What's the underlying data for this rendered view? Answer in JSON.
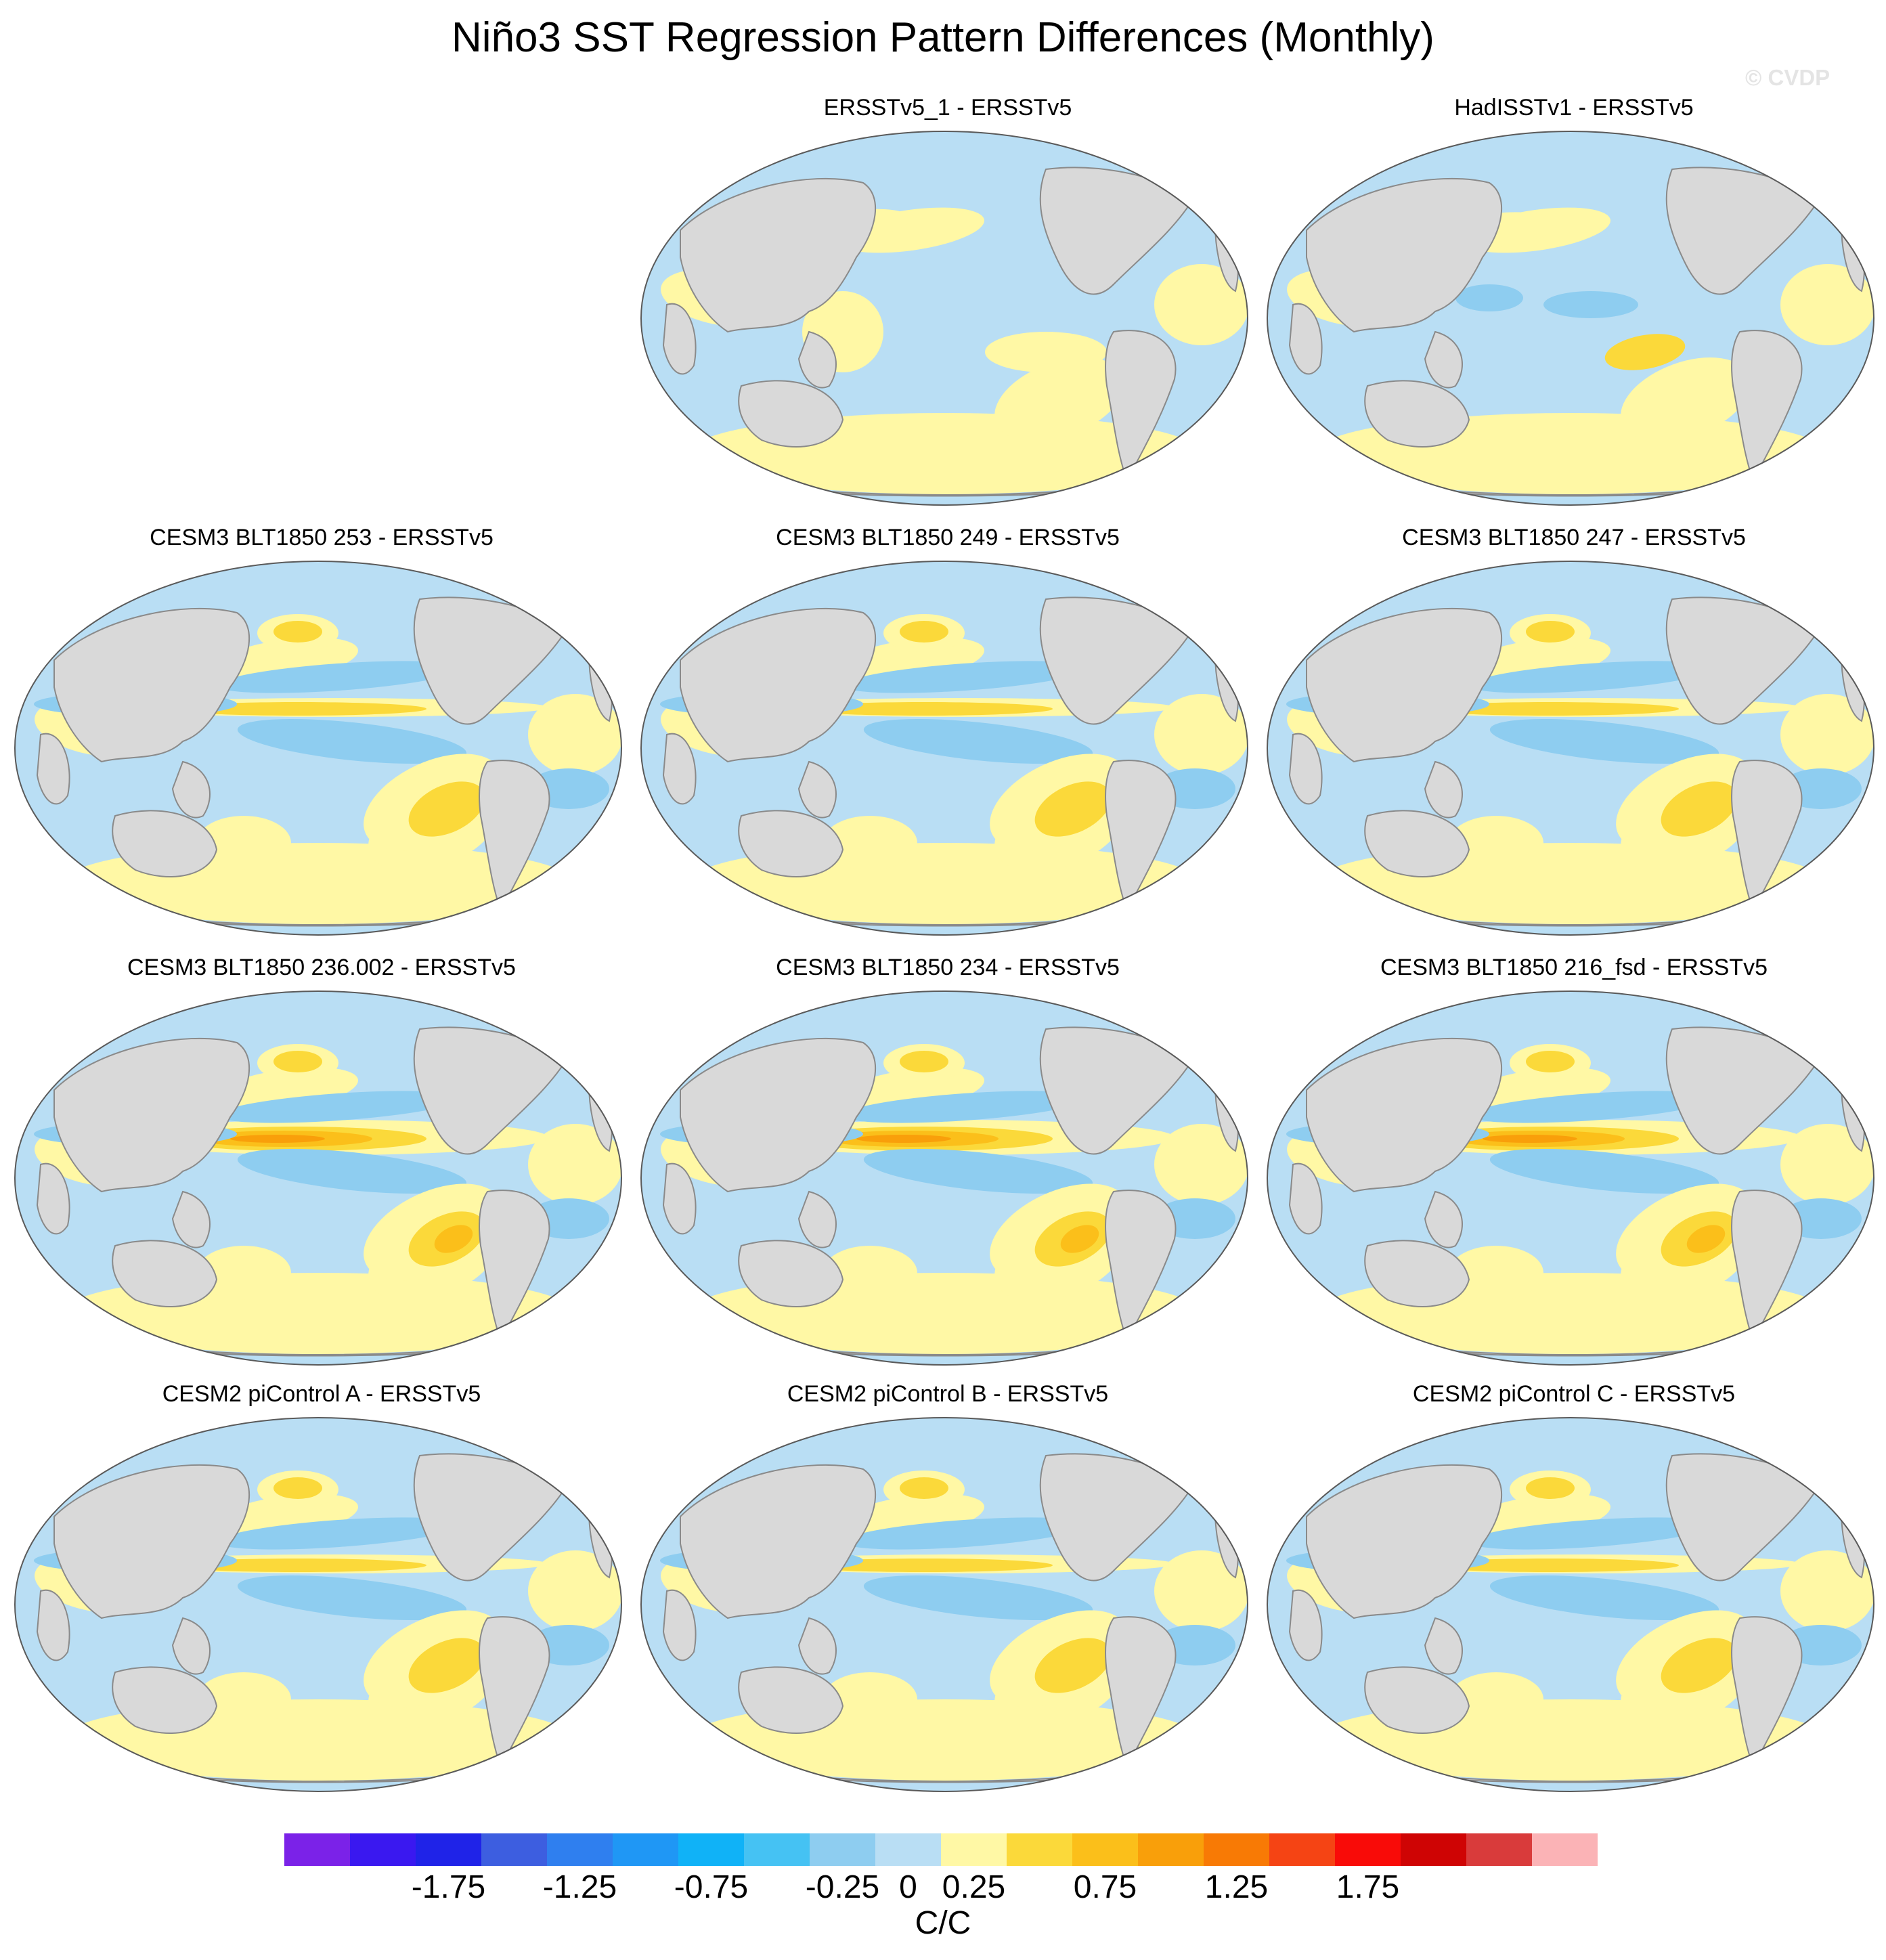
{
  "title": "Niño3 SST Regression Pattern Differences (Monthly)",
  "credit": "© CVDP",
  "panels": [
    {
      "title": "ERSSTv5_1 - ERSSTv5",
      "row": 0,
      "col": 1,
      "style": "obs_close"
    },
    {
      "title": "HadISSTv1 - ERSSTv5",
      "row": 0,
      "col": 2,
      "style": "obs"
    },
    {
      "title": "CESM3 BLT1850 253 - ERSSTv5",
      "row": 1,
      "col": 0,
      "style": "model"
    },
    {
      "title": "CESM3 BLT1850 249 - ERSSTv5",
      "row": 1,
      "col": 1,
      "style": "model"
    },
    {
      "title": "CESM3 BLT1850 247 - ERSSTv5",
      "row": 1,
      "col": 2,
      "style": "model"
    },
    {
      "title": "CESM3 BLT1850 236.002 - ERSSTv5",
      "row": 2,
      "col": 0,
      "style": "model_strong"
    },
    {
      "title": "CESM3 BLT1850 234 - ERSSTv5",
      "row": 2,
      "col": 1,
      "style": "model_strong"
    },
    {
      "title": "CESM3 BLT1850 216_fsd - ERSSTv5",
      "row": 2,
      "col": 2,
      "style": "model_strong"
    },
    {
      "title": "CESM2 piControl A - ERSSTv5",
      "row": 3,
      "col": 0,
      "style": "model"
    },
    {
      "title": "CESM2 piControl B - ERSSTv5",
      "row": 3,
      "col": 1,
      "style": "model"
    },
    {
      "title": "CESM2 piControl C - ERSSTv5",
      "row": 3,
      "col": 2,
      "style": "model"
    }
  ],
  "colorbar": {
    "units": "C/C",
    "levels": [
      -2.0,
      -1.75,
      -1.5,
      -1.25,
      -1.0,
      -0.75,
      -0.5,
      -0.25,
      0,
      0.25,
      0.5,
      0.75,
      1.0,
      1.25,
      1.5,
      1.75,
      2.0
    ],
    "tick_labels": [
      "-1.75",
      "-1.25",
      "-0.75",
      "-0.25",
      "0",
      "0.25",
      "0.75",
      "1.25",
      "1.75"
    ],
    "colors": [
      "#7b22e8",
      "#3a18f0",
      "#1f23e8",
      "#3d5ee0",
      "#2f7fef",
      "#1f97f5",
      "#10b2f7",
      "#45c2f3",
      "#8ecdf0",
      "#b9def4",
      "#fff8a5",
      "#fbd93a",
      "#fbbf1a",
      "#f99f0a",
      "#f87a05",
      "#f54414",
      "#f90b08",
      "#cf0404",
      "#d93b3b",
      "#fbb3b6"
    ]
  },
  "map_colors": {
    "land": "#d9d9d9",
    "coast": "#8a8a8a"
  }
}
